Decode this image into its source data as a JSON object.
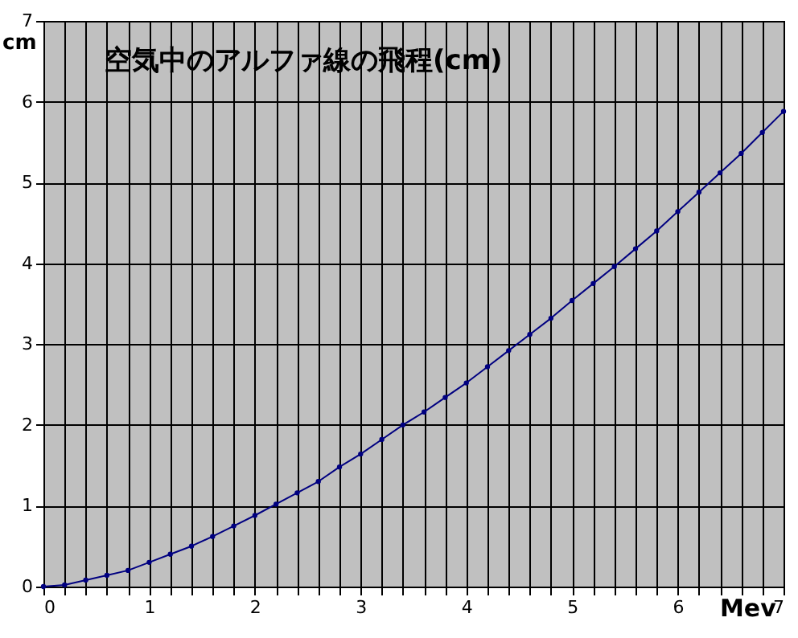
{
  "chart_data": {
    "type": "line",
    "title": "空気中のアルファ線の飛程(cm)",
    "xlabel": "Mev",
    "ylabel": "cm",
    "x": [
      0,
      0.2,
      0.4,
      0.6,
      0.8,
      1.0,
      1.2,
      1.4,
      1.6,
      1.8,
      2.0,
      2.2,
      2.4,
      2.6,
      2.8,
      3.0,
      3.2,
      3.4,
      3.6,
      3.8,
      4.0,
      4.2,
      4.4,
      4.6,
      4.8,
      5.0,
      5.2,
      5.4,
      5.6,
      5.8,
      6.0,
      6.2,
      6.4,
      6.6,
      6.8,
      7.0
    ],
    "series": [
      {
        "color": "#000080",
        "values": [
          0,
          0.02,
          0.08,
          0.14,
          0.2,
          0.3,
          0.4,
          0.5,
          0.62,
          0.75,
          0.88,
          1.02,
          1.16,
          1.3,
          1.48,
          1.64,
          1.82,
          2.0,
          2.16,
          2.34,
          2.52,
          2.72,
          2.92,
          3.12,
          3.32,
          3.54,
          3.75,
          3.96,
          4.18,
          4.4,
          4.64,
          4.88,
          5.12,
          5.36,
          5.62,
          5.88
        ]
      }
    ],
    "xlim": [
      0,
      7
    ],
    "ylim": [
      0,
      7
    ],
    "xticks": [
      0,
      {
        "value": 0.2,
        "label": null
      },
      {
        "value": 0.4,
        "label": null
      },
      {
        "value": 0.6,
        "label": null
      },
      {
        "value": 0.8,
        "label": null
      },
      1,
      {
        "value": 1.2,
        "label": null
      },
      {
        "value": 1.4,
        "label": null
      },
      {
        "value": 1.6,
        "label": null
      },
      {
        "value": 1.8,
        "label": null
      },
      2,
      {
        "value": 2.2,
        "label": null
      },
      {
        "value": 2.4,
        "label": null
      },
      {
        "value": 2.6,
        "label": null
      },
      {
        "value": 2.8,
        "label": null
      },
      3,
      {
        "value": 3.2,
        "label": null
      },
      {
        "value": 3.4,
        "label": null
      },
      {
        "value": 3.6,
        "label": null
      },
      {
        "value": 3.8,
        "label": null
      },
      4,
      {
        "value": 4.2,
        "label": null
      },
      {
        "value": 4.4,
        "label": null
      },
      {
        "value": 4.6,
        "label": null
      },
      {
        "value": 4.8,
        "label": null
      },
      5,
      {
        "value": 5.2,
        "label": null
      },
      {
        "value": 5.4,
        "label": null
      },
      {
        "value": 5.6,
        "label": null
      },
      {
        "value": 5.8,
        "label": null
      },
      6,
      {
        "value": 6.2,
        "label": null
      },
      {
        "value": 6.4,
        "label": null
      },
      {
        "value": 6.6,
        "label": null
      },
      {
        "value": 6.8,
        "label": null
      },
      7
    ],
    "yticks": [
      0,
      1,
      2,
      3,
      4,
      5,
      6,
      7
    ],
    "grid": true,
    "marker": "circle",
    "line_style": "solid"
  }
}
